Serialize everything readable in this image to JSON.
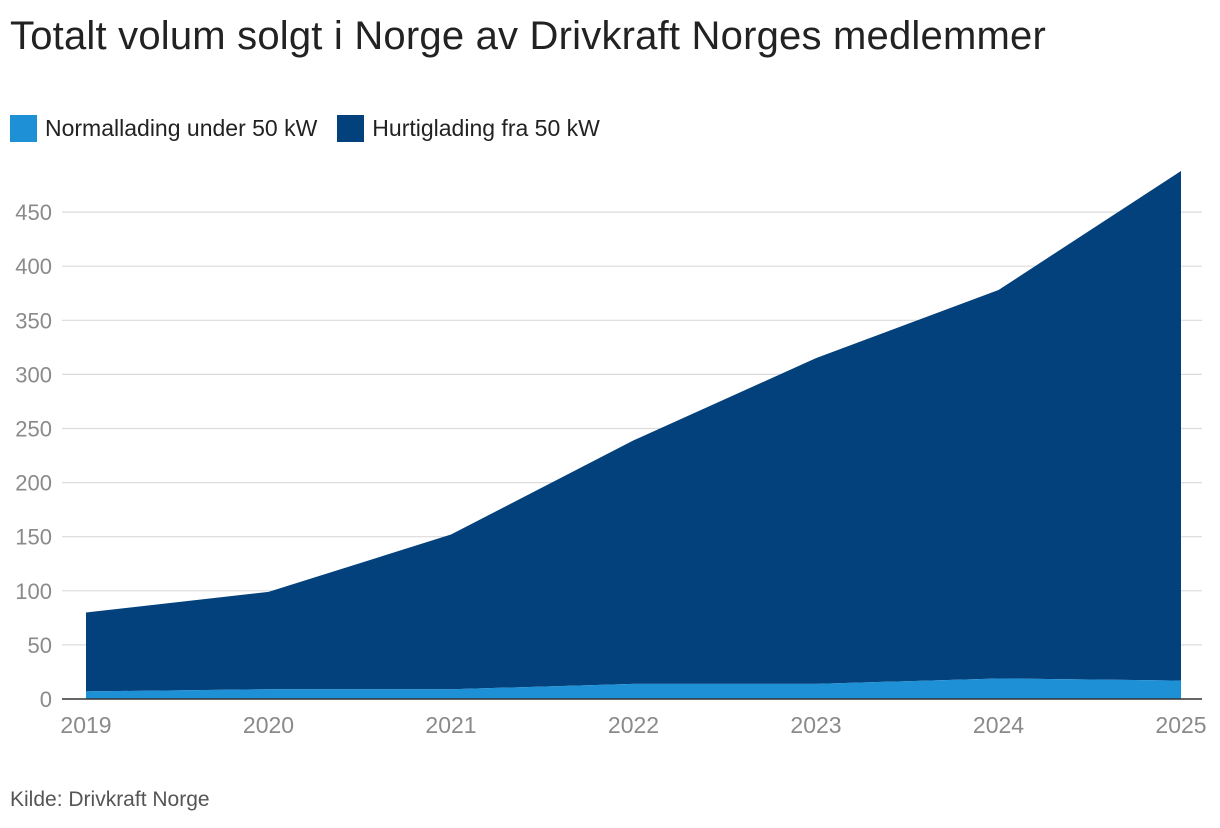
{
  "title": "Totalt volum solgt i Norge av Drivkraft Norges medlemmer",
  "source": "Kilde: Drivkraft Norge",
  "chart_data": {
    "type": "area",
    "stacked": true,
    "title": "Totalt volum solgt i Norge av Drivkraft Norges medlemmer",
    "xlabel": "",
    "ylabel": "",
    "categories": [
      "2019",
      "2020",
      "2021",
      "2022",
      "2023",
      "2024",
      "2025"
    ],
    "ylim": [
      0,
      490
    ],
    "yticks": [
      0,
      50,
      100,
      150,
      200,
      250,
      300,
      350,
      400,
      450
    ],
    "grid": true,
    "legend_position": "top-left",
    "series": [
      {
        "name": "Normallading under 50 kW",
        "color": "#1e90d6",
        "values": [
          7,
          9,
          9,
          14,
          14,
          19,
          17
        ]
      },
      {
        "name": "Hurtiglading fra 50 kW",
        "color": "#03417c",
        "values": [
          73,
          90,
          143,
          225,
          301,
          359,
          471
        ]
      }
    ]
  }
}
